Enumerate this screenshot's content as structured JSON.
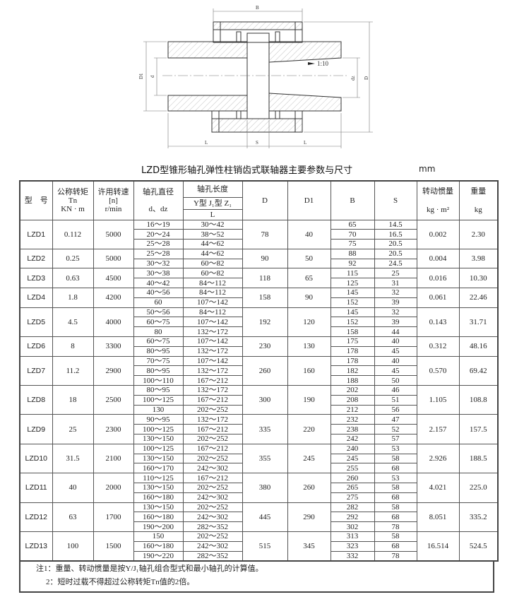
{
  "title": "LZD型锥形轴孔弹性柱销齿式联轴器主要参数与尺寸",
  "unit": "mm",
  "drawing": {
    "labels": {
      "B": "B",
      "D": "D",
      "D1": "D1",
      "d": "d",
      "dz": "dz",
      "L": "L",
      "S": "S",
      "taper": "1:10"
    }
  },
  "header": {
    "model": "型　号",
    "torque": [
      "公称转矩",
      "Tn",
      "KN · m"
    ],
    "speed": [
      "许用转速",
      "[n]",
      "r/min"
    ],
    "bore_dia": [
      "轴孔直径",
      "d、dz"
    ],
    "bore_len": [
      "轴孔长度",
      "Y型 J₁型 Z₁",
      "L"
    ],
    "D": "D",
    "D1": "D1",
    "B": "B",
    "S": "S",
    "inertia": [
      "转动惯量",
      "kg · m²"
    ],
    "weight": [
      "重量",
      "kg"
    ]
  },
  "rows": [
    {
      "model": "LZD1",
      "tn": "0.112",
      "n": "5000",
      "d": [
        "16～19",
        "20～24",
        "25～28"
      ],
      "L": [
        "30～42",
        "38～52",
        "44～62"
      ],
      "D": "78",
      "D1": "40",
      "B": [
        "65",
        "70",
        "75"
      ],
      "S": [
        "14.5",
        "16.5",
        "20.5"
      ],
      "I": "0.002",
      "m": "2.30"
    },
    {
      "model": "LZD2",
      "tn": "0.25",
      "n": "5000",
      "d": [
        "25～28",
        "30～32"
      ],
      "L": [
        "44～62",
        "60～82"
      ],
      "D": "90",
      "D1": "50",
      "B": [
        "88",
        "92"
      ],
      "S": [
        "20.5",
        "24.5"
      ],
      "I": "0.004",
      "m": "3.98"
    },
    {
      "model": "LZD3",
      "tn": "0.63",
      "n": "4500",
      "d": [
        "30～38",
        "40～42"
      ],
      "L": [
        "60～82",
        "84～112"
      ],
      "D": "118",
      "D1": "65",
      "B": [
        "115",
        "125"
      ],
      "S": [
        "25",
        "31"
      ],
      "I": "0.016",
      "m": "10.30"
    },
    {
      "model": "LZD4",
      "tn": "1.8",
      "n": "4200",
      "d": [
        "40～56",
        "60"
      ],
      "L": [
        "84～112",
        "107～142"
      ],
      "D": "158",
      "D1": "90",
      "B": [
        "145",
        "152"
      ],
      "S": [
        "32",
        "39"
      ],
      "I": "0.061",
      "m": "22.46"
    },
    {
      "model": "LZD5",
      "tn": "4.5",
      "n": "4000",
      "d": [
        "50～56",
        "60～75",
        "80"
      ],
      "L": [
        "84～112",
        "107～142",
        "132～172"
      ],
      "D": "192",
      "D1": "120",
      "B": [
        "145",
        "152",
        "158"
      ],
      "S": [
        "32",
        "39",
        "44"
      ],
      "I": "0.143",
      "m": "31.71"
    },
    {
      "model": "LZD6",
      "tn": "8",
      "n": "3300",
      "d": [
        "60～75",
        "80～95"
      ],
      "L": [
        "107～142",
        "132～172"
      ],
      "D": "230",
      "D1": "130",
      "B": [
        "175",
        "178"
      ],
      "S": [
        "40",
        "45"
      ],
      "I": "0.312",
      "m": "48.16"
    },
    {
      "model": "LZD7",
      "tn": "11.2",
      "n": "2900",
      "d": [
        "70～75",
        "80～95",
        "100～110"
      ],
      "L": [
        "107～142",
        "132～172",
        "167～212"
      ],
      "D": "260",
      "D1": "160",
      "B": [
        "178",
        "182",
        "188"
      ],
      "S": [
        "40",
        "45",
        "50"
      ],
      "I": "0.570",
      "m": "69.42"
    },
    {
      "model": "LZD8",
      "tn": "18",
      "n": "2500",
      "d": [
        "80～95",
        "100～125",
        "130"
      ],
      "L": [
        "132～172",
        "167～212",
        "202～252"
      ],
      "D": "300",
      "D1": "190",
      "B": [
        "202",
        "208",
        "212"
      ],
      "S": [
        "46",
        "51",
        "56"
      ],
      "I": "1.105",
      "m": "108.8"
    },
    {
      "model": "LZD9",
      "tn": "25",
      "n": "2300",
      "d": [
        "90～95",
        "100～125",
        "130～150"
      ],
      "L": [
        "132～172",
        "167～212",
        "202～252"
      ],
      "D": "335",
      "D1": "220",
      "B": [
        "232",
        "238",
        "242"
      ],
      "S": [
        "47",
        "52",
        "57"
      ],
      "I": "2.157",
      "m": "157.5"
    },
    {
      "model": "LZD10",
      "tn": "31.5",
      "n": "2100",
      "d": [
        "100～125",
        "130～150",
        "160～170"
      ],
      "L": [
        "167～212",
        "202～252",
        "242～302"
      ],
      "D": "355",
      "D1": "245",
      "B": [
        "240",
        "245",
        "255"
      ],
      "S": [
        "53",
        "58",
        "68"
      ],
      "I": "2.926",
      "m": "188.5"
    },
    {
      "model": "LZD11",
      "tn": "40",
      "n": "2000",
      "d": [
        "110～125",
        "130～150",
        "160～180"
      ],
      "L": [
        "167～212",
        "202～252",
        "242～302"
      ],
      "D": "380",
      "D1": "260",
      "B": [
        "260",
        "265",
        "275"
      ],
      "S": [
        "53",
        "58",
        "68"
      ],
      "I": "4.021",
      "m": "225.0"
    },
    {
      "model": "LZD12",
      "tn": "63",
      "n": "1700",
      "d": [
        "130～150",
        "160～180",
        "190～200"
      ],
      "L": [
        "202～252",
        "242～302",
        "282～352"
      ],
      "D": "445",
      "D1": "290",
      "B": [
        "282",
        "292",
        "302"
      ],
      "S": [
        "58",
        "68",
        "78"
      ],
      "I": "8.051",
      "m": "335.2"
    },
    {
      "model": "LZD13",
      "tn": "100",
      "n": "1500",
      "d": [
        "150",
        "160～180",
        "190～220"
      ],
      "L": [
        "202～252",
        "242～302",
        "282～352"
      ],
      "D": "515",
      "D1": "345",
      "B": [
        "313",
        "323",
        "332"
      ],
      "S": [
        "58",
        "68",
        "78"
      ],
      "I": "16.514",
      "m": "524.5"
    }
  ],
  "notes": [
    "注1：重量、转动惯量是按Y/J₁轴孔组合型式和最小轴孔的计算值。",
    "2：短时过载不得超过公称转矩Tn值的2倍。"
  ]
}
